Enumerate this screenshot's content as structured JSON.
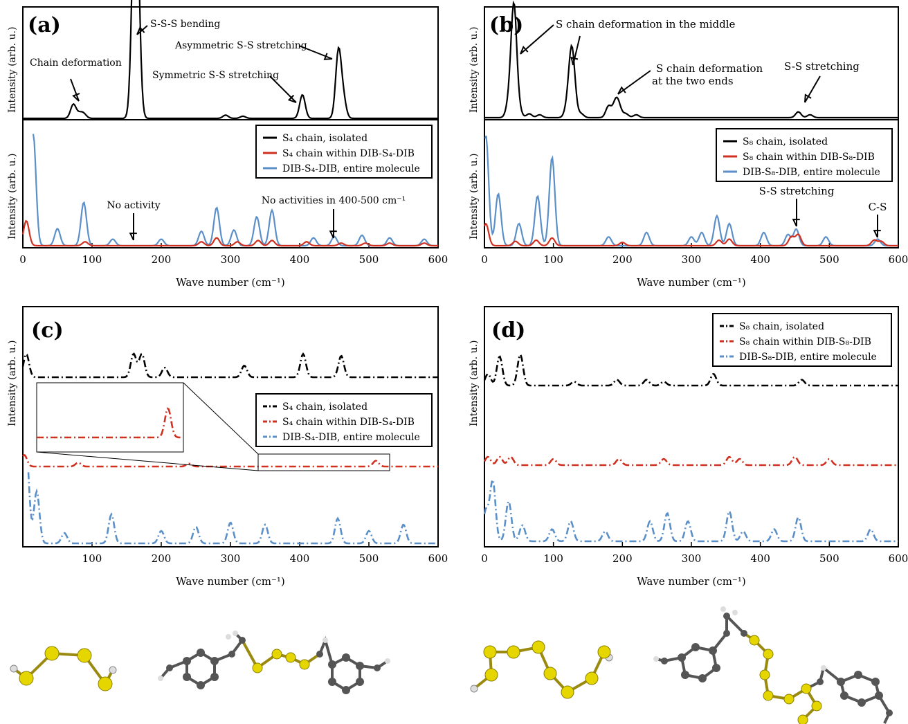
{
  "figure": {
    "title": ""
  },
  "chart_data": [
    {
      "panel": "a",
      "panel_label": "(a)",
      "type": "line",
      "xlabel": "Wave number (cm⁻¹)",
      "x_ticks": [
        0,
        100,
        200,
        300,
        400,
        500,
        600
      ],
      "xlim": [
        0,
        600
      ],
      "ylabel_top": "Intensity (arb. u.)",
      "ylabel_bottom": "Intensity (arb. u.)",
      "top_annotations": [
        {
          "text": "S-S-S bending",
          "peak_x": 163
        },
        {
          "text": "Chain deformation",
          "peak_x": 78
        },
        {
          "text": "Symmetric S-S stretching",
          "peak_x": 405
        },
        {
          "text": "Asymmetric S-S stretching",
          "peak_x": 457
        }
      ],
      "bottom_annotations": [
        {
          "text": "No activity",
          "at_x": 160
        },
        {
          "text": "No activities in 400-500 cm⁻¹",
          "at_x": 450
        }
      ],
      "legend": [
        "S₄ chain, isolated",
        "S₄ chain within DIB-S₄-DIB",
        "DIB-S₄-DIB, entire molecule"
      ],
      "legend_location": "top-right",
      "colors": [
        "#000000",
        "#d03020",
        "#5b8fc8"
      ],
      "series": [
        {
          "name": "S₄ chain, isolated",
          "style": "solid",
          "peaks": [
            [
              73,
              0.13
            ],
            [
              82,
              0.04
            ],
            [
              88,
              0.04
            ],
            [
              160,
              0.9
            ],
            [
              163,
              1.0
            ],
            [
              166,
              0.85
            ],
            [
              293,
              0.03
            ],
            [
              318,
              0.02
            ],
            [
              404,
              0.22
            ],
            [
              456,
              0.62
            ],
            [
              463,
              0.18
            ]
          ]
        },
        {
          "name": "S₄ chain within DIB-S₄-DIB",
          "style": "solid",
          "peaks": [
            [
              5,
              0.19
            ],
            [
              90,
              0.03
            ],
            [
              258,
              0.03
            ],
            [
              280,
              0.06
            ],
            [
              310,
              0.03
            ],
            [
              340,
              0.04
            ],
            [
              360,
              0.04
            ],
            [
              410,
              0.03
            ],
            [
              460,
              0.02
            ],
            [
              495,
              0.02
            ],
            [
              530,
              0.02
            ],
            [
              580,
              0.02
            ]
          ]
        },
        {
          "name": "DIB-S₄-DIB, entire molecule",
          "style": "solid",
          "peaks": [
            [
              15,
              0.85
            ],
            [
              50,
              0.13
            ],
            [
              88,
              0.33
            ],
            [
              130,
              0.05
            ],
            [
              200,
              0.05
            ],
            [
              258,
              0.11
            ],
            [
              280,
              0.29
            ],
            [
              305,
              0.12
            ],
            [
              338,
              0.22
            ],
            [
              360,
              0.27
            ],
            [
              420,
              0.06
            ],
            [
              450,
              0.07
            ],
            [
              490,
              0.08
            ],
            [
              530,
              0.06
            ],
            [
              580,
              0.05
            ]
          ]
        }
      ]
    },
    {
      "panel": "b",
      "panel_label": "(b)",
      "type": "line",
      "xlabel": "Wave number (cm⁻¹)",
      "x_ticks": [
        0,
        100,
        200,
        300,
        400,
        500,
        600
      ],
      "xlim": [
        0,
        600
      ],
      "ylabel_top": "Intensity (arb. u.)",
      "ylabel_bottom": "Intensity (arb. u.)",
      "top_annotations": [
        {
          "text": "S chain deformation in the middle",
          "peak_x": 43
        },
        {
          "text": "S chain deformation",
          "text2": "at the two ends",
          "peak_x": 190
        },
        {
          "text": "S-S stretching",
          "peak_x": 460
        }
      ],
      "bottom_annotations": [
        {
          "text": "S-S stretching",
          "at_x": 452
        },
        {
          "text": "C-S",
          "at_x": 570
        }
      ],
      "legend": [
        "S₈ chain, isolated",
        "S₈ chain within DIB-S₈-DIB",
        "DIB-S₈-DIB, entire molecule"
      ],
      "legend_location": "top-right",
      "colors": [
        "#000000",
        "#d03020",
        "#5b8fc8"
      ],
      "series": [
        {
          "name": "S₈ chain, isolated",
          "style": "solid",
          "peaks": [
            [
              35,
              0.12
            ],
            [
              40,
              0.2
            ],
            [
              43,
              1.0
            ],
            [
              50,
              0.08
            ],
            [
              65,
              0.04
            ],
            [
              80,
              0.03
            ],
            [
              120,
              0.1
            ],
            [
              126,
              0.6
            ],
            [
              130,
              0.18
            ],
            [
              140,
              0.04
            ],
            [
              180,
              0.12
            ],
            [
              190,
              0.15
            ],
            [
              195,
              0.1
            ],
            [
              205,
              0.04
            ],
            [
              220,
              0.03
            ],
            [
              455,
              0.06
            ],
            [
              472,
              0.03
            ]
          ]
        },
        {
          "name": "S₈ chain within DIB-S₈-DIB",
          "style": "solid",
          "peaks": [
            [
              2,
              0.2
            ],
            [
              45,
              0.04
            ],
            [
              75,
              0.05
            ],
            [
              98,
              0.07
            ],
            [
              200,
              0.03
            ],
            [
              340,
              0.05
            ],
            [
              355,
              0.06
            ],
            [
              445,
              0.08
            ],
            [
              455,
              0.1
            ],
            [
              565,
              0.05
            ],
            [
              575,
              0.04
            ]
          ]
        },
        {
          "name": "DIB-S₈-DIB, entire molecule",
          "style": "solid",
          "peaks": [
            [
              2,
              1.0
            ],
            [
              20,
              0.47
            ],
            [
              50,
              0.2
            ],
            [
              77,
              0.45
            ],
            [
              98,
              0.8
            ],
            [
              180,
              0.08
            ],
            [
              235,
              0.12
            ],
            [
              300,
              0.08
            ],
            [
              315,
              0.12
            ],
            [
              337,
              0.27
            ],
            [
              355,
              0.2
            ],
            [
              405,
              0.12
            ],
            [
              440,
              0.1
            ],
            [
              452,
              0.15
            ],
            [
              495,
              0.08
            ],
            [
              570,
              0.06
            ]
          ]
        }
      ]
    },
    {
      "panel": "c",
      "panel_label": "(c)",
      "type": "line",
      "xlabel": "Wave number (cm⁻¹)",
      "x_ticks": [
        100,
        200,
        300,
        400,
        500,
        600
      ],
      "xlim": [
        0,
        600
      ],
      "ylabel": "Intensity (arb. u.)",
      "legend": [
        "S₄ chain, isolated",
        "S₄ chain within DIB-S₄-DIB",
        "DIB-S₄-DIB, entire molecule"
      ],
      "legend_location": "center-right",
      "inset_zoom_x": [
        340,
        530
      ],
      "colors": [
        "#000000",
        "#d03020",
        "#5b8fc8"
      ],
      "series": [
        {
          "name": "S₄ chain, isolated",
          "style": "dash-dot",
          "peaks": [
            [
              5,
              0.12
            ],
            [
              160,
              0.12
            ],
            [
              172,
              0.12
            ],
            [
              205,
              0.05
            ],
            [
              320,
              0.06
            ],
            [
              405,
              0.12
            ],
            [
              460,
              0.11
            ]
          ]
        },
        {
          "name": "S₄ chain within DIB-S₄-DIB",
          "style": "dash-dot",
          "peaks": [
            [
              2,
              0.06
            ],
            [
              80,
              0.02
            ],
            [
              240,
              0.015
            ],
            [
              510,
              0.03
            ]
          ]
        },
        {
          "name": "DIB-S₄-DIB, entire molecule",
          "style": "dash-dot",
          "peaks": [
            [
              5,
              0.45
            ],
            [
              20,
              0.25
            ],
            [
              60,
              0.05
            ],
            [
              128,
              0.14
            ],
            [
              200,
              0.06
            ],
            [
              250,
              0.08
            ],
            [
              300,
              0.1
            ],
            [
              350,
              0.09
            ],
            [
              455,
              0.12
            ],
            [
              500,
              0.06
            ],
            [
              550,
              0.09
            ]
          ]
        }
      ]
    },
    {
      "panel": "d",
      "panel_label": "(d)",
      "type": "line",
      "xlabel": "Wave number (cm⁻¹)",
      "x_ticks": [
        0,
        100,
        200,
        300,
        400,
        500,
        600
      ],
      "xlim": [
        0,
        600
      ],
      "ylabel": "Intensity (arb. u.)",
      "legend": [
        "S₈ chain, isolated",
        "S₈ chain within DIB-S₈-DIB",
        "DIB-S₈-DIB, entire molecule"
      ],
      "legend_location": "top-right",
      "colors": [
        "#000000",
        "#d03020",
        "#5b8fc8"
      ],
      "series": [
        {
          "name": "S₈ chain, isolated",
          "style": "dash-dot",
          "peaks": [
            [
              5,
              0.06
            ],
            [
              22,
              0.15
            ],
            [
              52,
              0.16
            ],
            [
              130,
              0.02
            ],
            [
              192,
              0.03
            ],
            [
              235,
              0.03
            ],
            [
              260,
              0.02
            ],
            [
              332,
              0.06
            ],
            [
              460,
              0.03
            ]
          ]
        },
        {
          "name": "S₈ chain within DIB-S₈-DIB",
          "style": "dash-dot",
          "peaks": [
            [
              5,
              0.04
            ],
            [
              22,
              0.04
            ],
            [
              38,
              0.04
            ],
            [
              100,
              0.03
            ],
            [
              195,
              0.03
            ],
            [
              260,
              0.03
            ],
            [
              355,
              0.04
            ],
            [
              370,
              0.03
            ],
            [
              450,
              0.04
            ],
            [
              500,
              0.03
            ]
          ]
        },
        {
          "name": "DIB-S₈-DIB, entire molecule",
          "style": "dash-dot",
          "peaks": [
            [
              2,
              0.15
            ],
            [
              12,
              0.3
            ],
            [
              35,
              0.2
            ],
            [
              55,
              0.08
            ],
            [
              98,
              0.06
            ],
            [
              125,
              0.1
            ],
            [
              175,
              0.05
            ],
            [
              240,
              0.1
            ],
            [
              265,
              0.14
            ],
            [
              295,
              0.1
            ],
            [
              355,
              0.15
            ],
            [
              375,
              0.05
            ],
            [
              420,
              0.06
            ],
            [
              455,
              0.12
            ],
            [
              560,
              0.06
            ]
          ]
        }
      ]
    }
  ]
}
